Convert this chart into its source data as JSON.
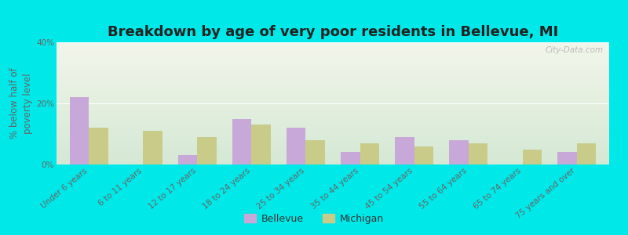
{
  "title": "Breakdown by age of very poor residents in Bellevue, MI",
  "ylabel": "% below half of\npoverty level",
  "categories": [
    "Under 6 years",
    "6 to 11 years",
    "12 to 17 years",
    "18 to 24 years",
    "25 to 34 years",
    "35 to 44 years",
    "45 to 54 years",
    "55 to 64 years",
    "65 to 74 years",
    "75 years and over"
  ],
  "bellevue": [
    22.0,
    0.0,
    3.0,
    15.0,
    12.0,
    4.0,
    9.0,
    8.0,
    0.0,
    4.0
  ],
  "michigan": [
    12.0,
    11.0,
    9.0,
    13.0,
    8.0,
    7.0,
    6.0,
    7.0,
    5.0,
    7.0
  ],
  "bellevue_color": "#c8a8d8",
  "michigan_color": "#c8cc88",
  "background_outer": "#00e8e8",
  "background_plot_top": "#f2f5ea",
  "background_plot_bottom": "#d4e8d4",
  "ylim": [
    0,
    40
  ],
  "yticks": [
    0,
    20,
    40
  ],
  "ytick_labels": [
    "0%",
    "20%",
    "40%"
  ],
  "title_fontsize": 13,
  "axis_label_fontsize": 8.5,
  "tick_fontsize": 7.5,
  "legend_labels": [
    "Bellevue",
    "Michigan"
  ],
  "watermark": "City-Data.com"
}
